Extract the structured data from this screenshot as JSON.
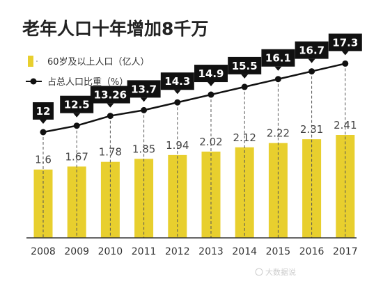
{
  "chart_data": {
    "type": "bar",
    "title": "老年人口十年增加8千万",
    "categories": [
      "2008",
      "2009",
      "2010",
      "2011",
      "2012",
      "2013",
      "2014",
      "2015",
      "2016",
      "2017"
    ],
    "series": [
      {
        "name": "60岁及以上人口（亿人）",
        "type": "bar",
        "values": [
          1.6,
          1.67,
          1.78,
          1.85,
          1.94,
          2.02,
          2.12,
          2.22,
          2.31,
          2.41
        ],
        "labels": [
          "1.6",
          "1.67",
          "1.78",
          "1.85",
          "1.94",
          "2.02",
          "2.12",
          "2.22",
          "2.31",
          "2.41"
        ]
      },
      {
        "name": "占总人口比重（%）",
        "type": "line",
        "values": [
          12,
          12.5,
          13.26,
          13.7,
          14.3,
          14.9,
          15.5,
          16.1,
          16.7,
          17.3
        ],
        "labels": [
          "12",
          "12.5",
          "13.26",
          "13.7",
          "14.3",
          "14.9",
          "15.5",
          "16.1",
          "16.7",
          "17.3"
        ]
      }
    ],
    "legend": "top-left",
    "grid": false
  },
  "watermark": "大数据说",
  "colors": {
    "bar": "#e8cf2e",
    "line": "#111111",
    "label_bg": "#111111",
    "label_text": "#ffffff",
    "axis": "#333333"
  }
}
